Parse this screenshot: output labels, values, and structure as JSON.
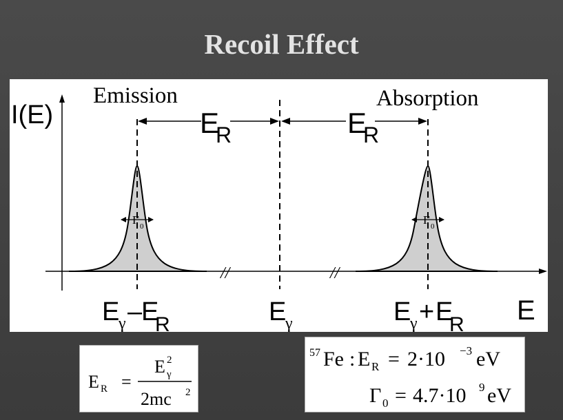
{
  "title": "Recoil Effect",
  "diagram": {
    "y_axis_label": "I(E)",
    "x_axis_label": "E",
    "left_peak_heading": "Emission",
    "right_peak_heading": "Absorption",
    "recoil_symbol": "E",
    "recoil_subscript": "R",
    "linewidth_symbol": "Γ",
    "linewidth_subscript": "0",
    "axis_break_mark": "//",
    "energy_symbol": "E",
    "gamma_subscript": "γ",
    "minus_sign": "–",
    "plus_sign": "+",
    "peak_fill_color": "#cfcfcf"
  },
  "formula_recoil": {
    "lhs": "E",
    "lhs_sub": "R",
    "equals": "=",
    "num": "E",
    "num_sub": "γ",
    "num_sup": "2",
    "den": "2mc",
    "den_sup": "2"
  },
  "formula_iron": {
    "isotope_mass": "57",
    "element": "Fe",
    "colon": ":",
    "er": "E",
    "er_sub": "R",
    "er_eq": "=",
    "er_val": "2·10",
    "er_exp": "−3",
    "er_unit": "eV",
    "gamma": "Γ",
    "gamma_sub": "0",
    "gamma_eq": "=",
    "gamma_val": "4.7·10",
    "gamma_exp": "9",
    "gamma_unit": "eV"
  }
}
